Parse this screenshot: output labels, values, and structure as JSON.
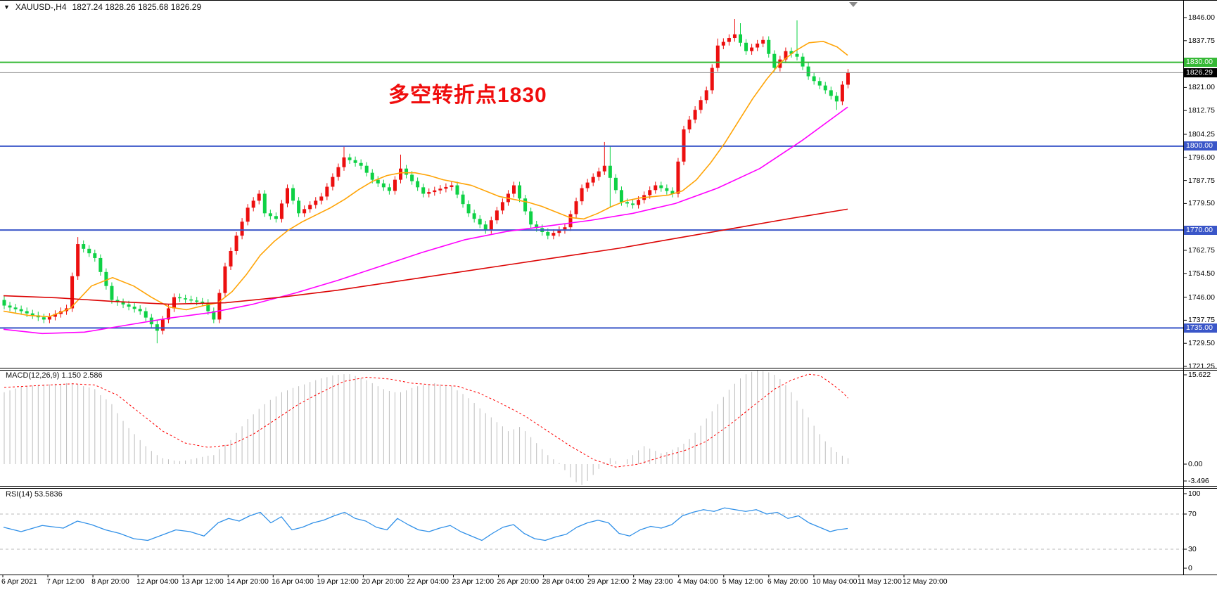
{
  "window": {
    "title_symbol": "XAUUSD-,H4",
    "title_ohlc": "1827.24 1828.26 1825.68 1826.29"
  },
  "icons": {
    "symbol_arrow": "▼"
  },
  "annotation": {
    "text": "多空转折点1830",
    "color": "#f00d0d"
  },
  "indicators": {
    "macd_label": "MACD(12,26,9) 1.150 2.586",
    "rsi_label": "RSI(14) 53.5836",
    "macd_scale": [
      "15.622",
      "0.00",
      "-3.496"
    ],
    "rsi_scale": [
      "100",
      "70",
      "30",
      "0"
    ]
  },
  "chart_data": {
    "type": "candlestick",
    "symbol": "XAUUSD-",
    "period": "H4",
    "ohlc_display": {
      "open": 1827.24,
      "high": 1828.26,
      "low": 1825.68,
      "close": 1826.29
    },
    "price_range": {
      "min": 1721.25,
      "max": 1846.0
    },
    "price_ticks": [
      [
        "1846.00",
        1846.0
      ],
      [
        "1837.75",
        1837.75
      ],
      [
        "1821.00",
        1821.0
      ],
      [
        "1812.75",
        1812.75
      ],
      [
        "1804.25",
        1804.25
      ],
      [
        "1796.00",
        1796.0
      ],
      [
        "1787.75",
        1787.75
      ],
      [
        "1779.50",
        1779.5
      ],
      [
        "1762.75",
        1762.75
      ],
      [
        "1754.50",
        1754.5
      ],
      [
        "1746.00",
        1746.0
      ],
      [
        "1737.75",
        1737.75
      ],
      [
        "1729.50",
        1729.5
      ],
      [
        "1721.25",
        1721.25
      ]
    ],
    "hlines": [
      {
        "label": "1830.00",
        "price": 1830.0,
        "color": "#35b935",
        "width": 2,
        "role": "resistance"
      },
      {
        "label": "1826.29",
        "price": 1826.29,
        "color": "#808080",
        "width": 1,
        "role": "last-price",
        "tag_bg": "#000000"
      },
      {
        "label": "1800.00",
        "price": 1800.0,
        "color": "#3a56c8",
        "width": 2,
        "role": "support"
      },
      {
        "label": "1770.00",
        "price": 1770.0,
        "color": "#3a56c8",
        "width": 2,
        "role": "support"
      },
      {
        "label": "1735.00",
        "price": 1735.0,
        "color": "#3a56c8",
        "width": 2,
        "role": "support"
      }
    ],
    "candles": {
      "up_color": "#ec0f0f",
      "down_color": "#0ed145",
      "first_open": 1745.0,
      "default_wick": 1.3,
      "closes": [
        1743,
        1742.3,
        1741.7,
        1741,
        1740.2,
        1739.5,
        1738.8,
        1738,
        1739,
        1740,
        1741,
        1742,
        1753.5,
        1765,
        1763.3,
        1761.7,
        1760,
        1755,
        1750,
        1745,
        1744.2,
        1743.4,
        1742.6,
        1741.8,
        1741,
        1738.7,
        1736.3,
        1734,
        1738,
        1742,
        1746,
        1745.6,
        1745.2,
        1744.8,
        1744.4,
        1744,
        1741,
        1738,
        1747.5,
        1757,
        1762.5,
        1768,
        1773,
        1778,
        1780.5,
        1783,
        1776,
        1775,
        1774,
        1779.5,
        1785,
        1780.5,
        1776,
        1777.5,
        1779,
        1780.5,
        1782,
        1785.5,
        1789,
        1792.5,
        1796,
        1795,
        1794,
        1793,
        1790.5,
        1788,
        1786.7,
        1785.3,
        1784,
        1788,
        1792,
        1789.8,
        1787.5,
        1785.3,
        1783,
        1783.6,
        1784.2,
        1784.8,
        1785.4,
        1786,
        1782.7,
        1779.3,
        1776,
        1774,
        1772,
        1770,
        1773.5,
        1777,
        1780,
        1783,
        1786,
        1781.3,
        1776.7,
        1772,
        1770.7,
        1769.3,
        1768,
        1769,
        1770,
        1771,
        1775.7,
        1780.3,
        1785,
        1787,
        1789,
        1791,
        1793,
        1788.7,
        1784.3,
        1780,
        1779.5,
        1779,
        1780.8,
        1782.5,
        1784.3,
        1786,
        1785,
        1784,
        1783,
        1794.5,
        1806,
        1809.5,
        1813,
        1816.5,
        1820,
        1828,
        1836,
        1837.3,
        1838.7,
        1840,
        1837,
        1834,
        1835.3,
        1836.7,
        1838,
        1833,
        1828,
        1831,
        1834,
        1833,
        1832,
        1828.5,
        1825,
        1823.3,
        1821.7,
        1820,
        1818,
        1816,
        1822,
        1826.3
      ],
      "wick_overrides": {
        "13": {
          "h": 1767.5
        },
        "27": {
          "l": 1729.5
        },
        "60": {
          "h": 1799.8
        },
        "70": {
          "h": 1797.0
        },
        "106": {
          "h": 1801.5
        },
        "107": {
          "h": 1800.0,
          "l": 1778.0
        },
        "126": {
          "h": 1838.5
        },
        "129": {
          "h": 1845.5
        },
        "130": {
          "h": 1844.0
        },
        "140": {
          "h": 1845.0
        },
        "147": {
          "l": 1813.0
        }
      }
    },
    "moving_averages": [
      {
        "name": "ma-fast",
        "color": "#ffa407",
        "points": [
          [
            5,
            1741
          ],
          [
            40,
            1739.5
          ],
          [
            70,
            1739
          ],
          [
            100,
            1742
          ],
          [
            130,
            1750
          ],
          [
            160,
            1753
          ],
          [
            190,
            1750
          ],
          [
            215,
            1746
          ],
          [
            240,
            1742.5
          ],
          [
            265,
            1741.5
          ],
          [
            290,
            1743
          ],
          [
            310,
            1744
          ],
          [
            330,
            1748
          ],
          [
            350,
            1754
          ],
          [
            370,
            1761
          ],
          [
            390,
            1766
          ],
          [
            410,
            1770
          ],
          [
            430,
            1773
          ],
          [
            450,
            1775.5
          ],
          [
            470,
            1778
          ],
          [
            490,
            1781
          ],
          [
            510,
            1784.5
          ],
          [
            530,
            1787.5
          ],
          [
            550,
            1789.5
          ],
          [
            570,
            1790.5
          ],
          [
            590,
            1790.5
          ],
          [
            610,
            1789.5
          ],
          [
            630,
            1788
          ],
          [
            650,
            1787
          ],
          [
            670,
            1786
          ],
          [
            690,
            1784
          ],
          [
            710,
            1782
          ],
          [
            730,
            1781
          ],
          [
            750,
            1780
          ],
          [
            770,
            1778.5
          ],
          [
            790,
            1776.5
          ],
          [
            810,
            1774.5
          ],
          [
            830,
            1774
          ],
          [
            850,
            1776
          ],
          [
            870,
            1778.5
          ],
          [
            890,
            1780.5
          ],
          [
            910,
            1781.5
          ],
          [
            930,
            1782
          ],
          [
            950,
            1782.5
          ],
          [
            970,
            1784
          ],
          [
            990,
            1788
          ],
          [
            1010,
            1794
          ],
          [
            1030,
            1801
          ],
          [
            1050,
            1809
          ],
          [
            1070,
            1817
          ],
          [
            1090,
            1824
          ],
          [
            1110,
            1830
          ],
          [
            1130,
            1834
          ],
          [
            1150,
            1837
          ],
          [
            1170,
            1837.5
          ],
          [
            1190,
            1835.5
          ],
          [
            1205,
            1832.5
          ]
        ]
      },
      {
        "name": "ma-mid",
        "color": "#ff00ff",
        "points": [
          [
            5,
            1734.5
          ],
          [
            60,
            1733
          ],
          [
            120,
            1733.5
          ],
          [
            180,
            1736
          ],
          [
            240,
            1738.5
          ],
          [
            300,
            1740.5
          ],
          [
            360,
            1743.5
          ],
          [
            420,
            1747.5
          ],
          [
            480,
            1752
          ],
          [
            540,
            1757
          ],
          [
            600,
            1762
          ],
          [
            660,
            1766.5
          ],
          [
            720,
            1769.5
          ],
          [
            780,
            1771.5
          ],
          [
            840,
            1773.5
          ],
          [
            900,
            1776
          ],
          [
            960,
            1779.5
          ],
          [
            1020,
            1785
          ],
          [
            1080,
            1792
          ],
          [
            1140,
            1802
          ],
          [
            1205,
            1814
          ]
        ]
      },
      {
        "name": "ma-slow",
        "color": "#dc0404",
        "points": [
          [
            5,
            1746.5
          ],
          [
            80,
            1745.8
          ],
          [
            160,
            1744.5
          ],
          [
            240,
            1743.5
          ],
          [
            320,
            1744
          ],
          [
            400,
            1746
          ],
          [
            480,
            1748.5
          ],
          [
            560,
            1751.5
          ],
          [
            640,
            1754.5
          ],
          [
            720,
            1757.5
          ],
          [
            800,
            1760.5
          ],
          [
            880,
            1763.5
          ],
          [
            960,
            1767
          ],
          [
            1040,
            1770.5
          ],
          [
            1120,
            1774
          ],
          [
            1205,
            1777.5
          ]
        ]
      }
    ],
    "macd": {
      "params": "12,26,9",
      "values": [
        1.15,
        2.586
      ],
      "range": {
        "max": 15.622,
        "min": -3.496
      },
      "hist_color": "#bdbdbd",
      "signal_color": "#ff0000",
      "histogram": [
        12.0,
        12.3,
        12.6,
        12.9,
        13.0,
        13.1,
        13.2,
        13.3,
        13.3,
        13.4,
        13.4,
        13.5,
        13.5,
        13.3,
        13.0,
        12.8,
        12.5,
        11.5,
        10.8,
        10.0,
        8.5,
        7.2,
        6.0,
        5.0,
        4.0,
        3.0,
        2.2,
        1.5,
        1.0,
        0.8,
        0.6,
        0.5,
        0.6,
        0.8,
        1.0,
        1.2,
        1.4,
        1.5,
        2.5,
        3.2,
        4.0,
        5.2,
        6.3,
        7.5,
        8.3,
        9.2,
        10.0,
        10.7,
        11.3,
        12.0,
        12.3,
        12.7,
        13.0,
        13.3,
        13.7,
        14.0,
        14.3,
        14.5,
        14.8,
        14.9,
        15.0,
        15.0,
        14.7,
        14.3,
        14.0,
        13.5,
        13.0,
        12.5,
        12.2,
        12.0,
        12.0,
        12.3,
        12.7,
        13.0,
        13.2,
        13.3,
        13.5,
        13.3,
        13.2,
        13.0,
        12.3,
        11.7,
        11.0,
        10.2,
        9.3,
        8.5,
        7.8,
        7.0,
        6.3,
        5.5,
        5.8,
        6.2,
        5.5,
        4.5,
        3.5,
        2.5,
        1.5,
        0.8,
        0.2,
        -1.0,
        -2.2,
        -3.0,
        -3.496,
        -2.8,
        -1.8,
        -0.8,
        0.3,
        1.0,
        0.5,
        0.0,
        0.8,
        1.5,
        2.3,
        3.0,
        2.6,
        2.2,
        1.8,
        2.0,
        2.4,
        2.8,
        3.4,
        4.2,
        5.2,
        6.4,
        7.6,
        8.8,
        10.0,
        11.2,
        12.4,
        13.4,
        14.3,
        15.0,
        15.4,
        15.622,
        15.5,
        15.3,
        14.9,
        14.2,
        13.2,
        12.0,
        10.6,
        9.2,
        7.8,
        6.4,
        5.0,
        3.8,
        2.8,
        2.0,
        1.4,
        1.0
      ],
      "signal": [
        [
          0,
          12.8
        ],
        [
          6,
          13.1
        ],
        [
          12,
          13.4
        ],
        [
          16,
          13.2
        ],
        [
          20,
          11.5
        ],
        [
          24,
          8.5
        ],
        [
          28,
          5.5
        ],
        [
          32,
          3.5
        ],
        [
          36,
          2.8
        ],
        [
          40,
          3.2
        ],
        [
          44,
          5.0
        ],
        [
          48,
          7.5
        ],
        [
          52,
          10.0
        ],
        [
          56,
          12.0
        ],
        [
          60,
          13.8
        ],
        [
          64,
          14.5
        ],
        [
          68,
          14.2
        ],
        [
          72,
          13.5
        ],
        [
          76,
          13.2
        ],
        [
          80,
          13.0
        ],
        [
          84,
          11.8
        ],
        [
          88,
          10.0
        ],
        [
          92,
          8.0
        ],
        [
          96,
          5.5
        ],
        [
          100,
          3.0
        ],
        [
          104,
          0.8
        ],
        [
          108,
          -0.5
        ],
        [
          112,
          0.0
        ],
        [
          116,
          1.2
        ],
        [
          120,
          2.2
        ],
        [
          124,
          3.8
        ],
        [
          128,
          6.5
        ],
        [
          132,
          9.5
        ],
        [
          136,
          12.5
        ],
        [
          139,
          14.0
        ],
        [
          142,
          15.0
        ],
        [
          144,
          14.8
        ],
        [
          146,
          13.5
        ],
        [
          148,
          12.0
        ],
        [
          149,
          11.0
        ]
      ]
    },
    "rsi": {
      "period": 14,
      "value": 53.5836,
      "levels": [
        70,
        30
      ],
      "color": "#3090e8",
      "points": [
        [
          5,
          55
        ],
        [
          30,
          50
        ],
        [
          60,
          57
        ],
        [
          90,
          54
        ],
        [
          110,
          62
        ],
        [
          130,
          58
        ],
        [
          150,
          52
        ],
        [
          170,
          48
        ],
        [
          190,
          42
        ],
        [
          210,
          40
        ],
        [
          230,
          46
        ],
        [
          250,
          52
        ],
        [
          270,
          50
        ],
        [
          290,
          45
        ],
        [
          310,
          60
        ],
        [
          325,
          65
        ],
        [
          340,
          62
        ],
        [
          355,
          68
        ],
        [
          370,
          72
        ],
        [
          385,
          60
        ],
        [
          400,
          67
        ],
        [
          415,
          52
        ],
        [
          430,
          55
        ],
        [
          445,
          60
        ],
        [
          460,
          63
        ],
        [
          475,
          68
        ],
        [
          490,
          72
        ],
        [
          505,
          65
        ],
        [
          520,
          62
        ],
        [
          535,
          55
        ],
        [
          550,
          52
        ],
        [
          565,
          65
        ],
        [
          580,
          58
        ],
        [
          595,
          52
        ],
        [
          610,
          50
        ],
        [
          625,
          54
        ],
        [
          640,
          57
        ],
        [
          655,
          50
        ],
        [
          670,
          45
        ],
        [
          685,
          40
        ],
        [
          700,
          48
        ],
        [
          715,
          55
        ],
        [
          730,
          58
        ],
        [
          745,
          48
        ],
        [
          760,
          42
        ],
        [
          775,
          40
        ],
        [
          790,
          44
        ],
        [
          805,
          47
        ],
        [
          820,
          55
        ],
        [
          835,
          60
        ],
        [
          850,
          63
        ],
        [
          865,
          60
        ],
        [
          880,
          48
        ],
        [
          895,
          45
        ],
        [
          910,
          52
        ],
        [
          925,
          56
        ],
        [
          940,
          54
        ],
        [
          955,
          58
        ],
        [
          970,
          68
        ],
        [
          985,
          72
        ],
        [
          1000,
          75
        ],
        [
          1015,
          73
        ],
        [
          1030,
          77
        ],
        [
          1045,
          75
        ],
        [
          1060,
          73
        ],
        [
          1075,
          75
        ],
        [
          1090,
          70
        ],
        [
          1105,
          72
        ],
        [
          1120,
          65
        ],
        [
          1135,
          68
        ],
        [
          1150,
          60
        ],
        [
          1165,
          55
        ],
        [
          1180,
          50
        ],
        [
          1190,
          52
        ],
        [
          1205,
          53.6
        ]
      ]
    },
    "time_labels": [
      "6 Apr 2021",
      "7 Apr 12:00",
      "8 Apr 20:00",
      "12 Apr 04:00",
      "13 Apr 12:00",
      "14 Apr 20:00",
      "16 Apr 04:00",
      "19 Apr 12:00",
      "20 Apr 20:00",
      "22 Apr 04:00",
      "23 Apr 12:00",
      "26 Apr 20:00",
      "28 Apr 04:00",
      "29 Apr 12:00",
      "2 May 23:00",
      "4 May 04:00",
      "5 May 12:00",
      "6 May 20:00",
      "10 May 04:00",
      "11 May 12:00",
      "12 May 20:00"
    ]
  }
}
